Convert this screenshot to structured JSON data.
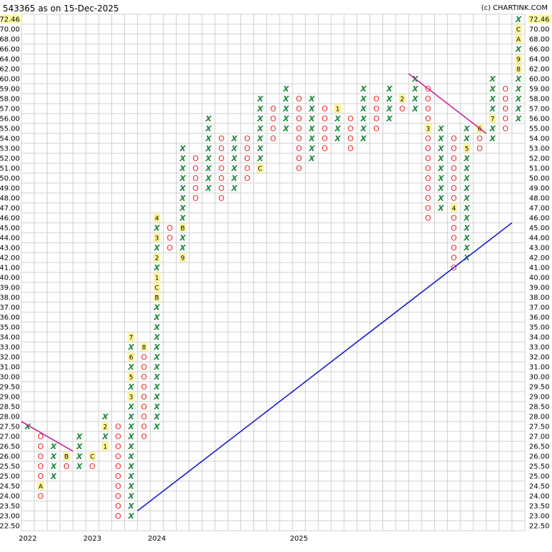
{
  "header": {
    "title": "543365 as on 15-Dec-2025",
    "credit": "(c) CHARTINK.COM"
  },
  "chart_data": {
    "type": "point-and-figure",
    "title": "543365 as on 15-Dec-2025",
    "last_price": "72.46",
    "price_levels": [
      "72.46",
      "70.00",
      "68.00",
      "66.00",
      "64.00",
      "62.00",
      "60.00",
      "59.00",
      "58.00",
      "57.00",
      "56.00",
      "55.00",
      "54.00",
      "53.00",
      "52.00",
      "51.00",
      "50.00",
      "49.00",
      "48.00",
      "47.00",
      "46.00",
      "45.00",
      "44.00",
      "43.00",
      "42.00",
      "41.00",
      "40.00",
      "39.00",
      "38.00",
      "37.00",
      "36.00",
      "35.00",
      "34.00",
      "33.00",
      "32.00",
      "31.00",
      "30.00",
      "29.50",
      "29.00",
      "28.50",
      "28.00",
      "27.50",
      "27.00",
      "26.50",
      "26.00",
      "25.50",
      "25.00",
      "24.50",
      "24.00",
      "23.50",
      "23.00",
      "22.50"
    ],
    "x_labels": [
      {
        "label": "2022",
        "col": 0
      },
      {
        "label": "2023",
        "col": 5
      },
      {
        "label": "2024",
        "col": 10
      },
      {
        "label": "2025",
        "col": 21
      }
    ],
    "columns": [
      {
        "t": "X",
        "lo": 41,
        "hi": 41,
        "m": {}
      },
      {
        "t": "O",
        "lo": 42,
        "hi": 48,
        "m": {
          "47": "A"
        }
      },
      {
        "t": "X",
        "lo": 43,
        "hi": 46,
        "m": {}
      },
      {
        "t": "O",
        "lo": 44,
        "hi": 45,
        "m": {
          "44": "B"
        }
      },
      {
        "t": "X",
        "lo": 42,
        "hi": 45,
        "m": {}
      },
      {
        "t": "O",
        "lo": 44,
        "hi": 45,
        "m": {
          "44": "C"
        }
      },
      {
        "t": "X",
        "lo": 40,
        "hi": 43,
        "m": {
          "43": "1",
          "41": "2"
        }
      },
      {
        "t": "O",
        "lo": 41,
        "hi": 50,
        "m": {}
      },
      {
        "t": "X",
        "lo": 32,
        "hi": 50,
        "m": {
          "32": "7",
          "34": "6",
          "36": "5",
          "38": "3"
        }
      },
      {
        "t": "O",
        "lo": 33,
        "hi": 42,
        "m": {
          "33": "8"
        }
      },
      {
        "t": "X",
        "lo": 20,
        "hi": 41,
        "m": {
          "20": "4",
          "22": "3",
          "24": "2",
          "26": "1",
          "27": "C",
          "28": "B"
        }
      },
      {
        "t": "O",
        "lo": 21,
        "hi": 23,
        "m": {}
      },
      {
        "t": "X",
        "lo": 13,
        "hi": 24,
        "m": {
          "21": "B",
          "24": "9"
        }
      },
      {
        "t": "O",
        "lo": 14,
        "hi": 18,
        "m": {}
      },
      {
        "t": "X",
        "lo": 10,
        "hi": 17,
        "m": {}
      },
      {
        "t": "O",
        "lo": 12,
        "hi": 18,
        "m": {}
      },
      {
        "t": "X",
        "lo": 12,
        "hi": 17,
        "m": {}
      },
      {
        "t": "O",
        "lo": 12,
        "hi": 16,
        "m": {}
      },
      {
        "t": "X",
        "lo": 8,
        "hi": 15,
        "m": {
          "15": "C"
        }
      },
      {
        "t": "O",
        "lo": 9,
        "hi": 12,
        "m": {}
      },
      {
        "t": "X",
        "lo": 7,
        "hi": 11,
        "m": {}
      },
      {
        "t": "O",
        "lo": 8,
        "hi": 15,
        "m": {}
      },
      {
        "t": "X",
        "lo": 8,
        "hi": 14,
        "m": {}
      },
      {
        "t": "O",
        "lo": 9,
        "hi": 13,
        "m": {}
      },
      {
        "t": "X",
        "lo": 9,
        "hi": 12,
        "m": {
          "9": "1"
        }
      },
      {
        "t": "O",
        "lo": 10,
        "hi": 13,
        "m": {}
      },
      {
        "t": "X",
        "lo": 7,
        "hi": 12,
        "m": {}
      },
      {
        "t": "O",
        "lo": 8,
        "hi": 11,
        "m": {}
      },
      {
        "t": "X",
        "lo": 7,
        "hi": 10,
        "m": {}
      },
      {
        "t": "O",
        "lo": 8,
        "hi": 9,
        "m": {
          "8": "2"
        }
      },
      {
        "t": "X",
        "lo": 6,
        "hi": 9,
        "m": {}
      },
      {
        "t": "O",
        "lo": 7,
        "hi": 20,
        "m": {
          "11": "3"
        }
      },
      {
        "t": "X",
        "lo": 11,
        "hi": 19,
        "m": {}
      },
      {
        "t": "O",
        "lo": 12,
        "hi": 25,
        "m": {
          "19": "4"
        }
      },
      {
        "t": "X",
        "lo": 11,
        "hi": 24,
        "m": {
          "13": "5"
        }
      },
      {
        "t": "O",
        "lo": 11,
        "hi": 13,
        "m": {
          "11": "6"
        }
      },
      {
        "t": "X",
        "lo": 6,
        "hi": 12,
        "m": {
          "10": "7"
        }
      },
      {
        "t": "O",
        "lo": 7,
        "hi": 11,
        "m": {}
      },
      {
        "t": "X",
        "lo": 0,
        "hi": 10,
        "m": {
          "1": "C",
          "2": "A",
          "4": "9",
          "5": "8"
        }
      }
    ],
    "trendlines": [
      {
        "name": "resistance",
        "color": "#cc2299",
        "from": {
          "col": -0.5,
          "row": 40.5
        },
        "to": {
          "col": 3.5,
          "row": 43.5
        }
      },
      {
        "name": "resistance",
        "color": "#cc2299",
        "from": {
          "col": 29.5,
          "row": 5.5
        },
        "to": {
          "col": 35.5,
          "row": 11.5
        }
      },
      {
        "name": "support",
        "color": "#1a1acc",
        "from": {
          "col": 8.5,
          "row": 49.5
        },
        "to": {
          "col": 37.5,
          "row": 20.5
        }
      }
    ],
    "colors": {
      "x": "#1f8a3c",
      "o": "#e8262a",
      "grid": "#d0d0d0",
      "last_price_bg": "#ffffa8",
      "month_bg": "#fff59d"
    }
  }
}
